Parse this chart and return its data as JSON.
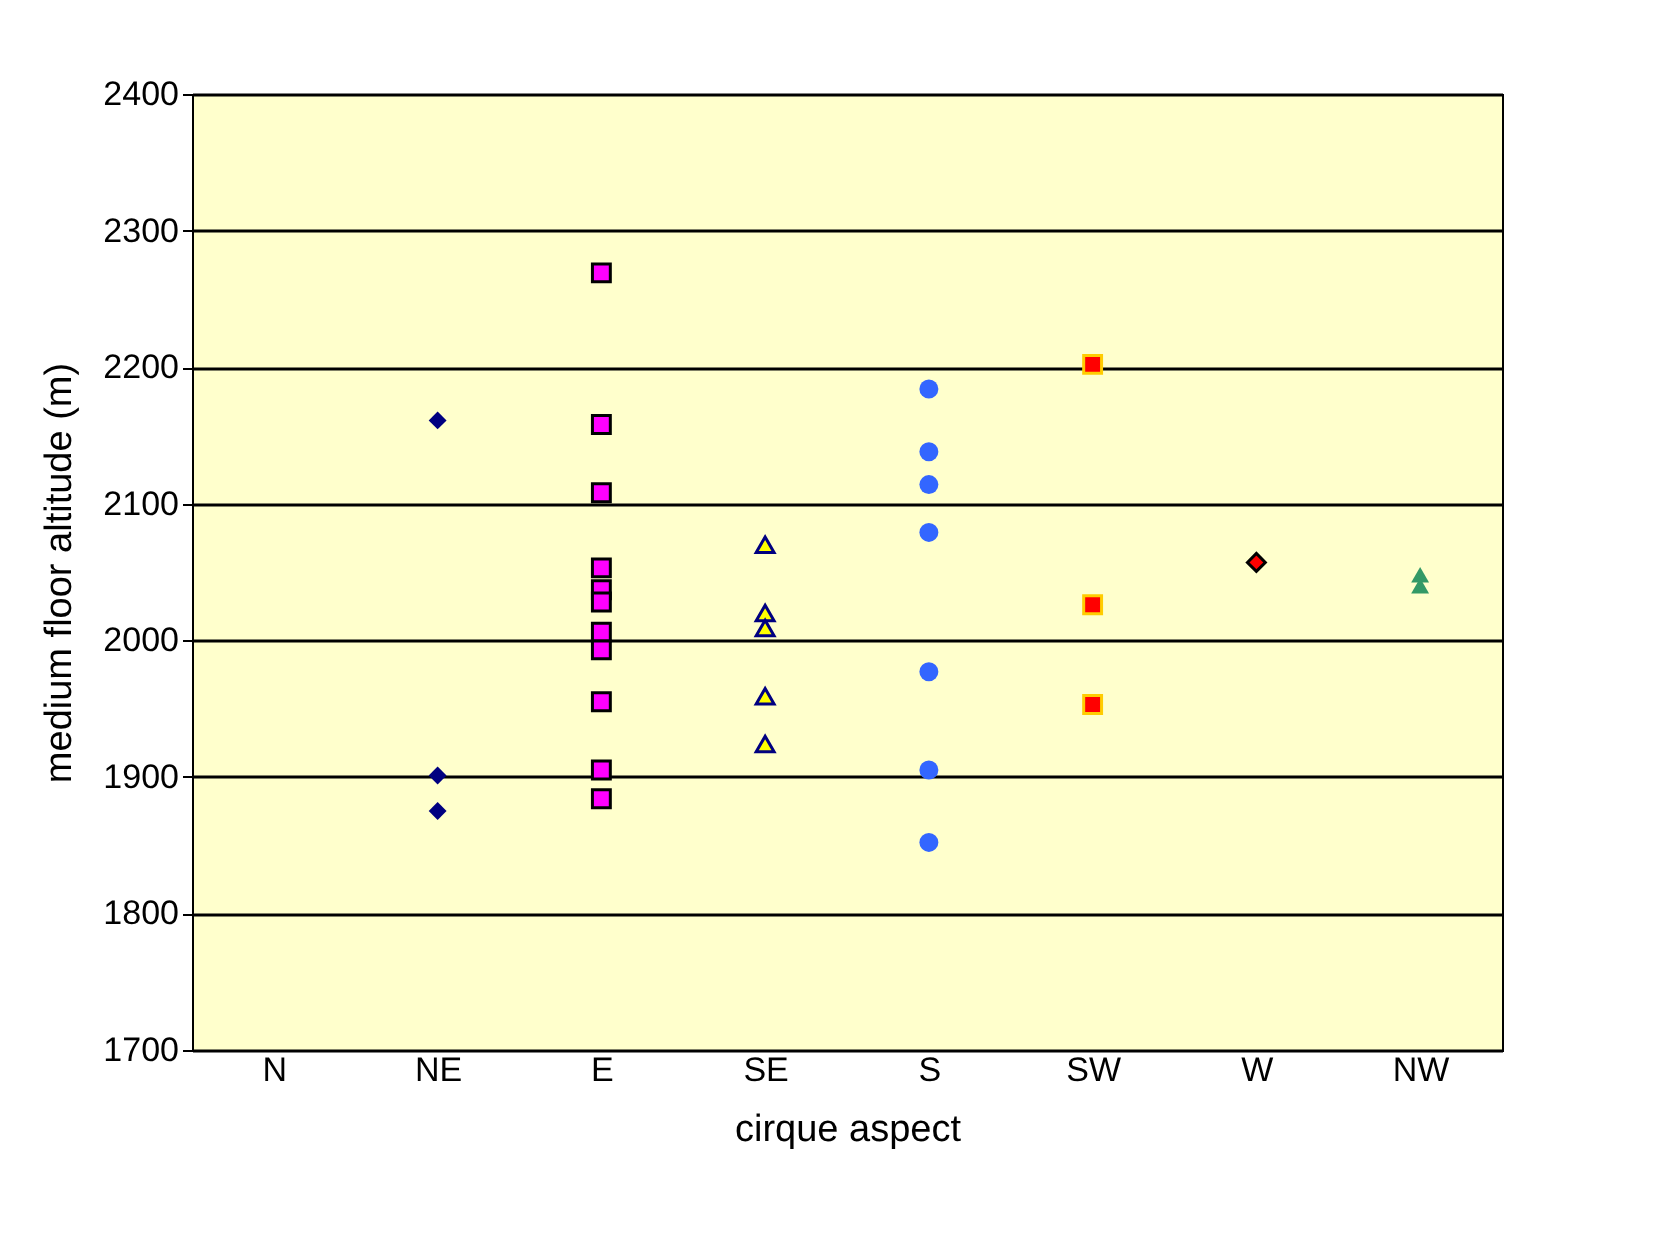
{
  "chart_data": {
    "type": "scatter",
    "xlabel": "cirque aspect",
    "ylabel": "medium floor altitude (m)",
    "categories": [
      "N",
      "NE",
      "E",
      "SE",
      "S",
      "SW",
      "W",
      "NW"
    ],
    "ylim": [
      1700,
      2400
    ],
    "yticks": [
      1700,
      1800,
      1900,
      2000,
      2100,
      2200,
      2300,
      2400
    ],
    "grid": "y",
    "series": [
      {
        "color": "#000080",
        "marker": "diamond",
        "x": [
          "NE",
          "NE",
          "NE"
        ],
        "values": [
          2161,
          1901,
          1875
        ]
      },
      {
        "color": "#ff00ff",
        "marker": "square",
        "x": [
          "E",
          "E",
          "E",
          "E",
          "E",
          "E",
          "E",
          "E",
          "E",
          "E",
          "E"
        ],
        "values": [
          2269,
          2158,
          2108,
          2053,
          2037,
          2028,
          2006,
          1993,
          1955,
          1905,
          1884
        ]
      },
      {
        "color": "#ffff00",
        "marker": "triangle",
        "x": [
          "SE",
          "SE",
          "SE",
          "SE",
          "SE"
        ],
        "values": [
          2070,
          2020,
          2009,
          1959,
          1924
        ]
      },
      {
        "color": "#3366ff",
        "marker": "circle",
        "x": [
          "S",
          "S",
          "S",
          "S",
          "S",
          "S",
          "S"
        ],
        "values": [
          2184,
          2138,
          2114,
          2079,
          1977,
          1905,
          1852
        ]
      },
      {
        "color": "#ff0000",
        "marker": "square",
        "x": [
          "SW",
          "SW",
          "SW"
        ],
        "values": [
          2202,
          2026,
          1953
        ]
      },
      {
        "color": "#ff0000",
        "marker": "diamond",
        "x": [
          "W"
        ],
        "values": [
          2057
        ]
      },
      {
        "color": "#339966",
        "marker": "triangle",
        "x": [
          "NW",
          "NW"
        ],
        "values": [
          2048,
          2040
        ]
      }
    ]
  }
}
